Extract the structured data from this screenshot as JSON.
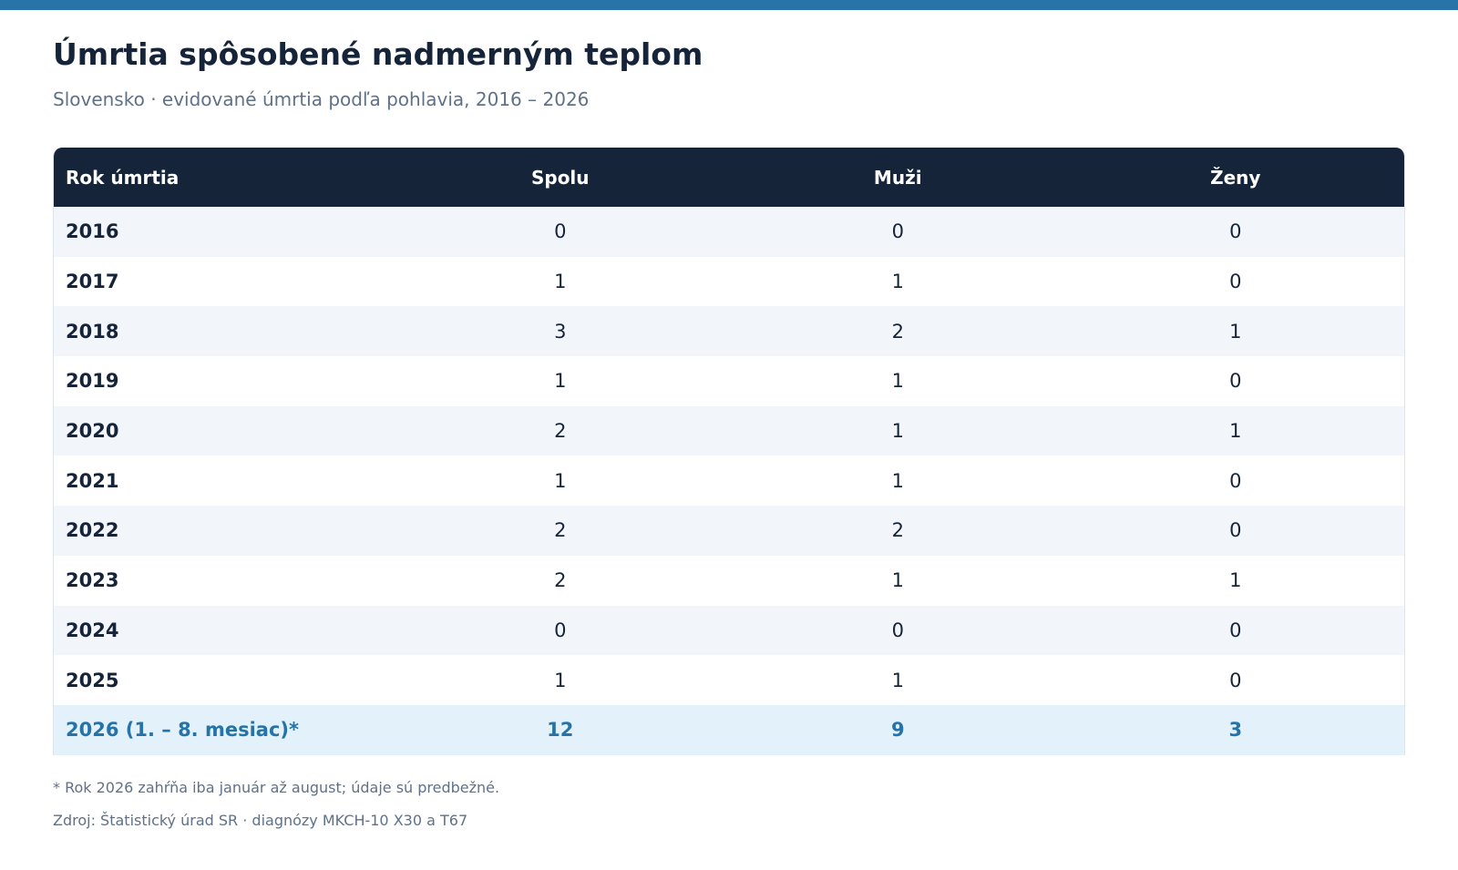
{
  "title": "Úmrtia spôsobené nadmerným teplom",
  "subtitle": "Slovensko · evidované úmrtia podľa pohlavia, 2016 – 2026",
  "chart_data": {
    "type": "table",
    "title": "Úmrtia spôsobené nadmerným teplom",
    "subtitle": "Slovensko · evidované úmrtia podľa pohlavia, 2016 – 2026",
    "columns": [
      "Rok úmrtia",
      "Spolu",
      "Muži",
      "Ženy"
    ],
    "rows": [
      {
        "year": "2016",
        "total": 0,
        "men": 0,
        "women": 0
      },
      {
        "year": "2017",
        "total": 1,
        "men": 1,
        "women": 0
      },
      {
        "year": "2018",
        "total": 3,
        "men": 2,
        "women": 1
      },
      {
        "year": "2019",
        "total": 1,
        "men": 1,
        "women": 0
      },
      {
        "year": "2020",
        "total": 2,
        "men": 1,
        "women": 1
      },
      {
        "year": "2021",
        "total": 1,
        "men": 1,
        "women": 0
      },
      {
        "year": "2022",
        "total": 2,
        "men": 2,
        "women": 0
      },
      {
        "year": "2023",
        "total": 2,
        "men": 1,
        "women": 1
      },
      {
        "year": "2024",
        "total": 0,
        "men": 0,
        "women": 0
      },
      {
        "year": "2025",
        "total": 1,
        "men": 1,
        "women": 0
      },
      {
        "year": "2026 (1. – 8. mesiac)*",
        "total": 12,
        "men": 9,
        "women": 3
      }
    ]
  },
  "footnote": "* Rok 2026 zahŕňa iba január až august; údaje sú predbežné.",
  "source": "Zdroj: Štatistický úrad SR · diagnózy MKCH-10 X30 a T67",
  "colors": {
    "accent": "#2874a9",
    "header_bg": "#16243a",
    "highlight_bg": "#e3f1fa",
    "highlight_text": "#2573a8"
  }
}
